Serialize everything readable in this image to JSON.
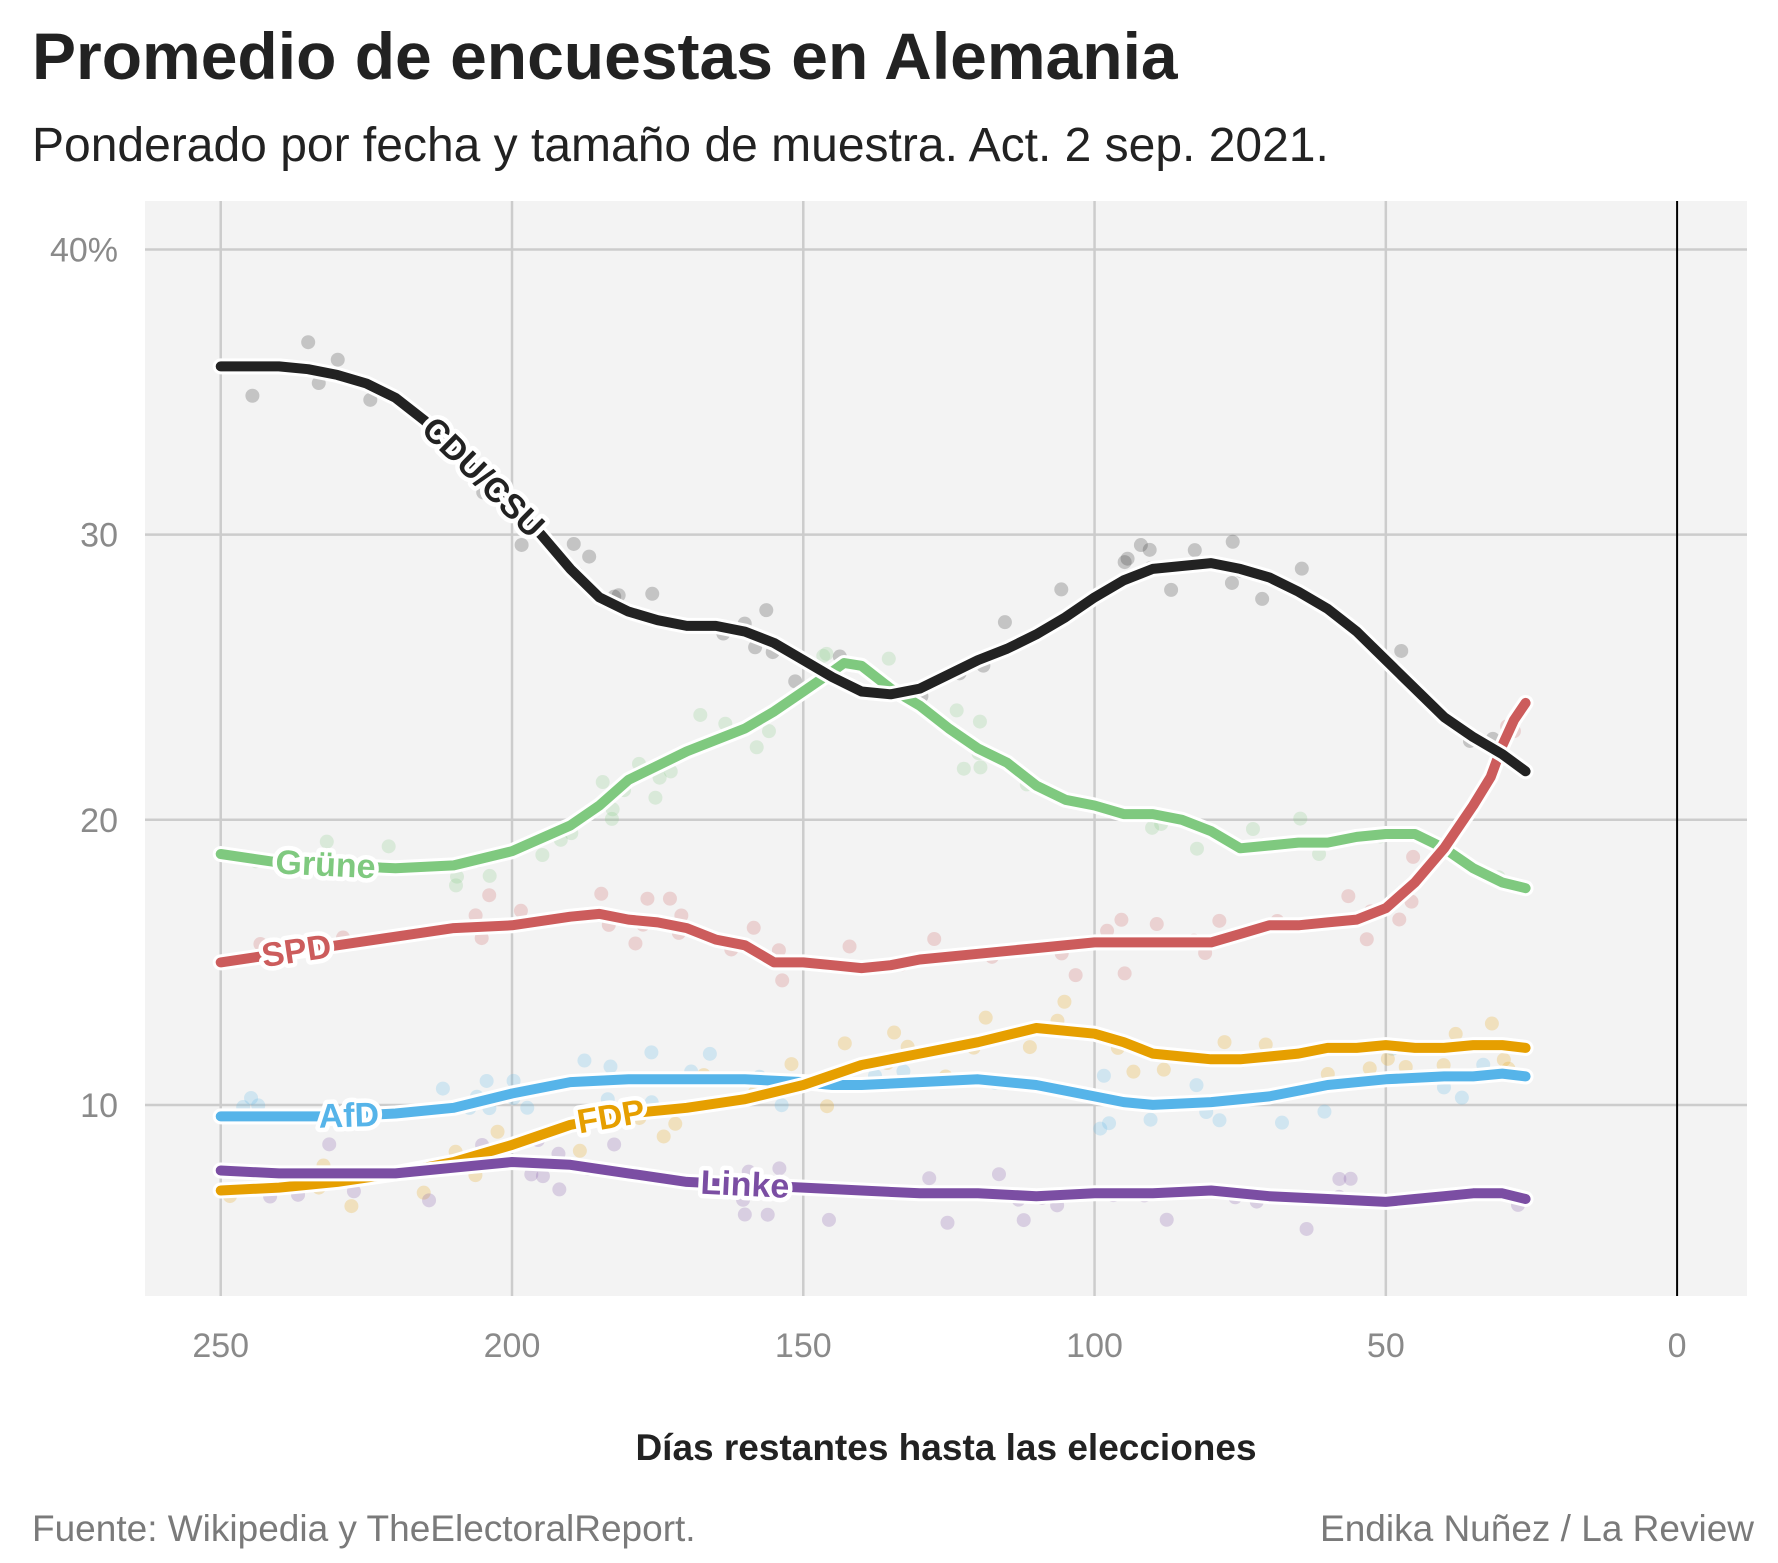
{
  "header": {
    "title": "Promedio de encuestas en Alemania",
    "subtitle": "Ponderado por fecha y tamaño de muestra. Act. 2 sep. 2021."
  },
  "footer": {
    "source": "Fuente: Wikipedia y TheElectoralReport.",
    "author": "Endika Nuñez / La Review"
  },
  "colors": {
    "panel": "#f3f3f3",
    "grid": "#cccccc",
    "election_line": "#000000"
  },
  "chart_data": {
    "type": "line",
    "title": "Promedio de encuestas en Alemania",
    "subtitle": "Ponderado por fecha y tamaño de muestra. Act. 2 sep. 2021.",
    "xlabel": "Días restantes hasta las elecciones",
    "ylabel": "",
    "x_reversed": true,
    "xlim": [
      263,
      -12
    ],
    "ylim": [
      3.3,
      41.7
    ],
    "x_ticks": [
      250,
      200,
      150,
      100,
      50,
      0
    ],
    "x_tick_labels": [
      "250",
      "200",
      "150",
      "100",
      "50",
      "0"
    ],
    "y_ticks": [
      40,
      30,
      20,
      10
    ],
    "y_tick_labels": [
      "40%",
      "30",
      "20",
      "10"
    ],
    "grid": true,
    "legend": "none (direct labels on lines)",
    "reference_line_x": 0,
    "series": [
      {
        "name": "Grüne",
        "color": "#7fc97f",
        "label_day": 232,
        "x": [
          250,
          240,
          230,
          220,
          210,
          200,
          190,
          185,
          180,
          170,
          160,
          155,
          150,
          145,
          143,
          140,
          135,
          130,
          125,
          120,
          115,
          110,
          105,
          100,
          95,
          90,
          85,
          80,
          75,
          70,
          65,
          60,
          55,
          50,
          45,
          40,
          35,
          30,
          26
        ],
        "y": [
          18.8,
          18.5,
          18.4,
          18.3,
          18.4,
          18.9,
          19.8,
          20.5,
          21.4,
          22.4,
          23.2,
          23.8,
          24.5,
          25.2,
          25.5,
          25.4,
          24.6,
          24.0,
          23.2,
          22.5,
          22.0,
          21.2,
          20.7,
          20.5,
          20.2,
          20.2,
          20.0,
          19.6,
          19.0,
          19.1,
          19.2,
          19.2,
          19.4,
          19.5,
          19.5,
          19.0,
          18.3,
          17.8,
          17.6
        ]
      },
      {
        "name": "SPD",
        "color": "#cc5c5c",
        "label_day": 237,
        "x": [
          250,
          240,
          230,
          220,
          210,
          200,
          190,
          185,
          180,
          175,
          170,
          165,
          160,
          155,
          150,
          145,
          140,
          135,
          130,
          120,
          110,
          100,
          90,
          80,
          75,
          70,
          65,
          60,
          55,
          50,
          45,
          40,
          35,
          32,
          30,
          28,
          26
        ],
        "y": [
          15.0,
          15.3,
          15.6,
          15.9,
          16.2,
          16.3,
          16.6,
          16.7,
          16.5,
          16.4,
          16.2,
          15.8,
          15.6,
          15.0,
          15.0,
          14.9,
          14.8,
          14.9,
          15.1,
          15.3,
          15.5,
          15.7,
          15.7,
          15.7,
          16.0,
          16.3,
          16.3,
          16.4,
          16.5,
          16.9,
          17.8,
          19.0,
          20.5,
          21.5,
          22.6,
          23.5,
          24.1
        ]
      },
      {
        "name": "CDU/CSU",
        "color": "#222222",
        "label_day": 205,
        "x": [
          250,
          245,
          240,
          235,
          230,
          225,
          220,
          215,
          210,
          205,
          200,
          195,
          190,
          185,
          180,
          175,
          170,
          165,
          160,
          155,
          150,
          145,
          140,
          135,
          130,
          125,
          120,
          115,
          110,
          105,
          100,
          95,
          90,
          85,
          80,
          75,
          70,
          65,
          60,
          55,
          50,
          45,
          40,
          35,
          30,
          26
        ],
        "y": [
          35.9,
          35.9,
          35.9,
          35.8,
          35.6,
          35.3,
          34.8,
          34.0,
          33.0,
          32.0,
          31.0,
          30.0,
          28.8,
          27.8,
          27.3,
          27.0,
          26.8,
          26.8,
          26.6,
          26.2,
          25.6,
          25.0,
          24.5,
          24.4,
          24.6,
          25.1,
          25.6,
          26.0,
          26.5,
          27.1,
          27.8,
          28.4,
          28.8,
          28.9,
          29.0,
          28.8,
          28.5,
          28.0,
          27.4,
          26.6,
          25.6,
          24.6,
          23.6,
          22.9,
          22.3,
          21.7
        ]
      },
      {
        "name": "AfD",
        "color": "#56b4e9",
        "label_day": 228,
        "x": [
          250,
          240,
          230,
          220,
          210,
          200,
          190,
          180,
          170,
          160,
          150,
          145,
          140,
          130,
          120,
          110,
          100,
          95,
          90,
          80,
          70,
          60,
          50,
          40,
          35,
          30,
          26
        ],
        "y": [
          9.6,
          9.6,
          9.6,
          9.7,
          9.9,
          10.4,
          10.8,
          10.9,
          10.9,
          10.9,
          10.8,
          10.7,
          10.7,
          10.8,
          10.9,
          10.7,
          10.3,
          10.1,
          10.0,
          10.1,
          10.3,
          10.7,
          10.9,
          11.0,
          11.0,
          11.1,
          11.0
        ]
      },
      {
        "name": "FDP",
        "color": "#e69f00",
        "label_day": 183,
        "x": [
          250,
          240,
          230,
          220,
          210,
          200,
          190,
          180,
          170,
          160,
          150,
          140,
          130,
          120,
          110,
          105,
          100,
          95,
          90,
          85,
          80,
          75,
          70,
          65,
          60,
          55,
          50,
          45,
          40,
          35,
          30,
          26
        ],
        "y": [
          7.0,
          7.1,
          7.3,
          7.6,
          8.0,
          8.6,
          9.3,
          9.7,
          9.9,
          10.2,
          10.7,
          11.4,
          11.8,
          12.2,
          12.7,
          12.6,
          12.5,
          12.2,
          11.8,
          11.7,
          11.6,
          11.6,
          11.7,
          11.8,
          12.0,
          12.0,
          12.1,
          12.0,
          12.0,
          12.1,
          12.1,
          12.0
        ]
      },
      {
        "name": "Linke",
        "color": "#7b4ea3",
        "label_day": 160,
        "x": [
          250,
          240,
          230,
          220,
          210,
          200,
          190,
          180,
          170,
          160,
          150,
          140,
          130,
          120,
          110,
          100,
          90,
          80,
          70,
          60,
          50,
          45,
          40,
          35,
          30,
          26
        ],
        "y": [
          7.7,
          7.6,
          7.6,
          7.6,
          7.8,
          8.0,
          7.9,
          7.6,
          7.3,
          7.2,
          7.1,
          7.0,
          6.9,
          6.9,
          6.8,
          6.9,
          6.9,
          7.0,
          6.8,
          6.7,
          6.6,
          6.7,
          6.8,
          6.9,
          6.9,
          6.7
        ]
      }
    ]
  }
}
